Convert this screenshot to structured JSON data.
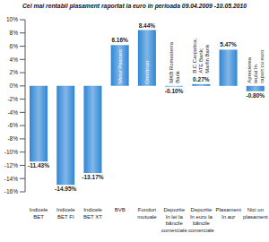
{
  "chart_data": {
    "type": "bar",
    "title": "Cel mai rentabil plasament raportat la euro în perioada 09.04.2009 -10.05.2010",
    "categories": [
      "Indicele BET",
      "Indicele BET FI",
      "Indicele BET XT",
      "BVB",
      "Fonduri mutuale",
      "Depozite în lei la băncile comerciale",
      "Depozite în euro la băncile comerciale",
      "Plasament în aur",
      "Nici un plasament"
    ],
    "values": [
      -11.43,
      -14.95,
      -13.17,
      6.16,
      8.44,
      -0.1,
      0.27,
      5.47,
      -0.8
    ],
    "value_labels": [
      "-11.43%",
      "-14.95%",
      "-13.17%",
      "6.16%",
      "8.44%",
      "-0.10%",
      "0.27%",
      "5.47%",
      "-0.80%"
    ],
    "annotations": [
      null,
      null,
      null,
      "Sfetul Pascani",
      "Omnitrust",
      "MKB Romexterra Bank",
      "B.C.Carpatica; ATE Bank; Marfin Bank",
      null,
      "Aprecierea leului în raport cu euro"
    ],
    "color": "#2f86d6",
    "ylim": [
      -16,
      10
    ],
    "yticks": [
      {
        "value": -16,
        "label": "-16%"
      },
      {
        "value": -14,
        "label": "-14%"
      },
      {
        "value": -12,
        "label": "-12%"
      },
      {
        "value": -10,
        "label": "-10%"
      },
      {
        "value": -8,
        "label": "-8%"
      },
      {
        "value": -6,
        "label": "-6%"
      },
      {
        "value": -4,
        "label": "-4%"
      },
      {
        "value": -2,
        "label": "-2%"
      },
      {
        "value": 0,
        "label": "0%"
      },
      {
        "value": 2,
        "label": "2%"
      },
      {
        "value": 4,
        "label": "4%"
      },
      {
        "value": 6,
        "label": "6%"
      },
      {
        "value": 8,
        "label": "8%"
      },
      {
        "value": 10,
        "label": "10%"
      }
    ],
    "grid": false,
    "data_labels": true
  }
}
